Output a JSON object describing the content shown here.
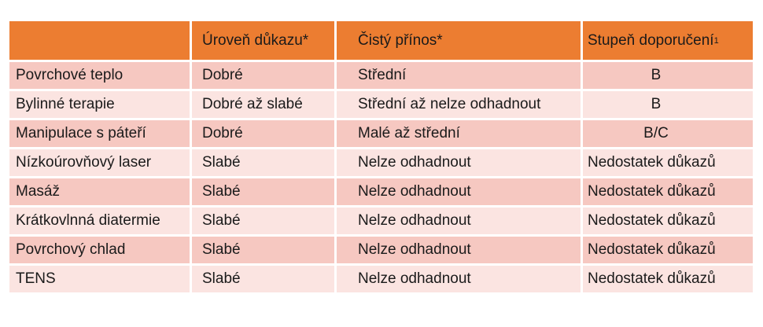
{
  "table": {
    "headers": [
      "",
      "Úroveň důkazu*",
      "Čistý přínos*",
      "Stupeň doporučení"
    ],
    "header_sup": "1",
    "rows": [
      [
        "Povrchové teplo",
        "Dobré",
        "Střední",
        "B"
      ],
      [
        "Bylinné terapie",
        "Dobré až slabé",
        "Střední až nelze odhadnout",
        "B"
      ],
      [
        "Manipulace s páteří",
        "Dobré",
        "Malé až střední",
        "B/C"
      ],
      [
        "Nízkoúrovňový laser",
        "Slabé",
        "Nelze odhadnout",
        "Nedostatek důkazů"
      ],
      [
        "Masáž",
        "Slabé",
        "Nelze odhadnout",
        "Nedostatek důkazů"
      ],
      [
        "Krátkovlnná diatermie",
        "Slabé",
        "Nelze odhadnout",
        "Nedostatek důkazů"
      ],
      [
        "Povrchový chlad",
        "Slabé",
        "Nelze odhadnout",
        "Nedostatek důkazů"
      ],
      [
        "TENS",
        "Slabé",
        "Nelze odhadnout",
        "Nedostatek důkazů"
      ]
    ]
  },
  "colors": {
    "header": "#ec7d31",
    "row_dark": "#f6c8c1",
    "row_light": "#fbe4e1"
  }
}
